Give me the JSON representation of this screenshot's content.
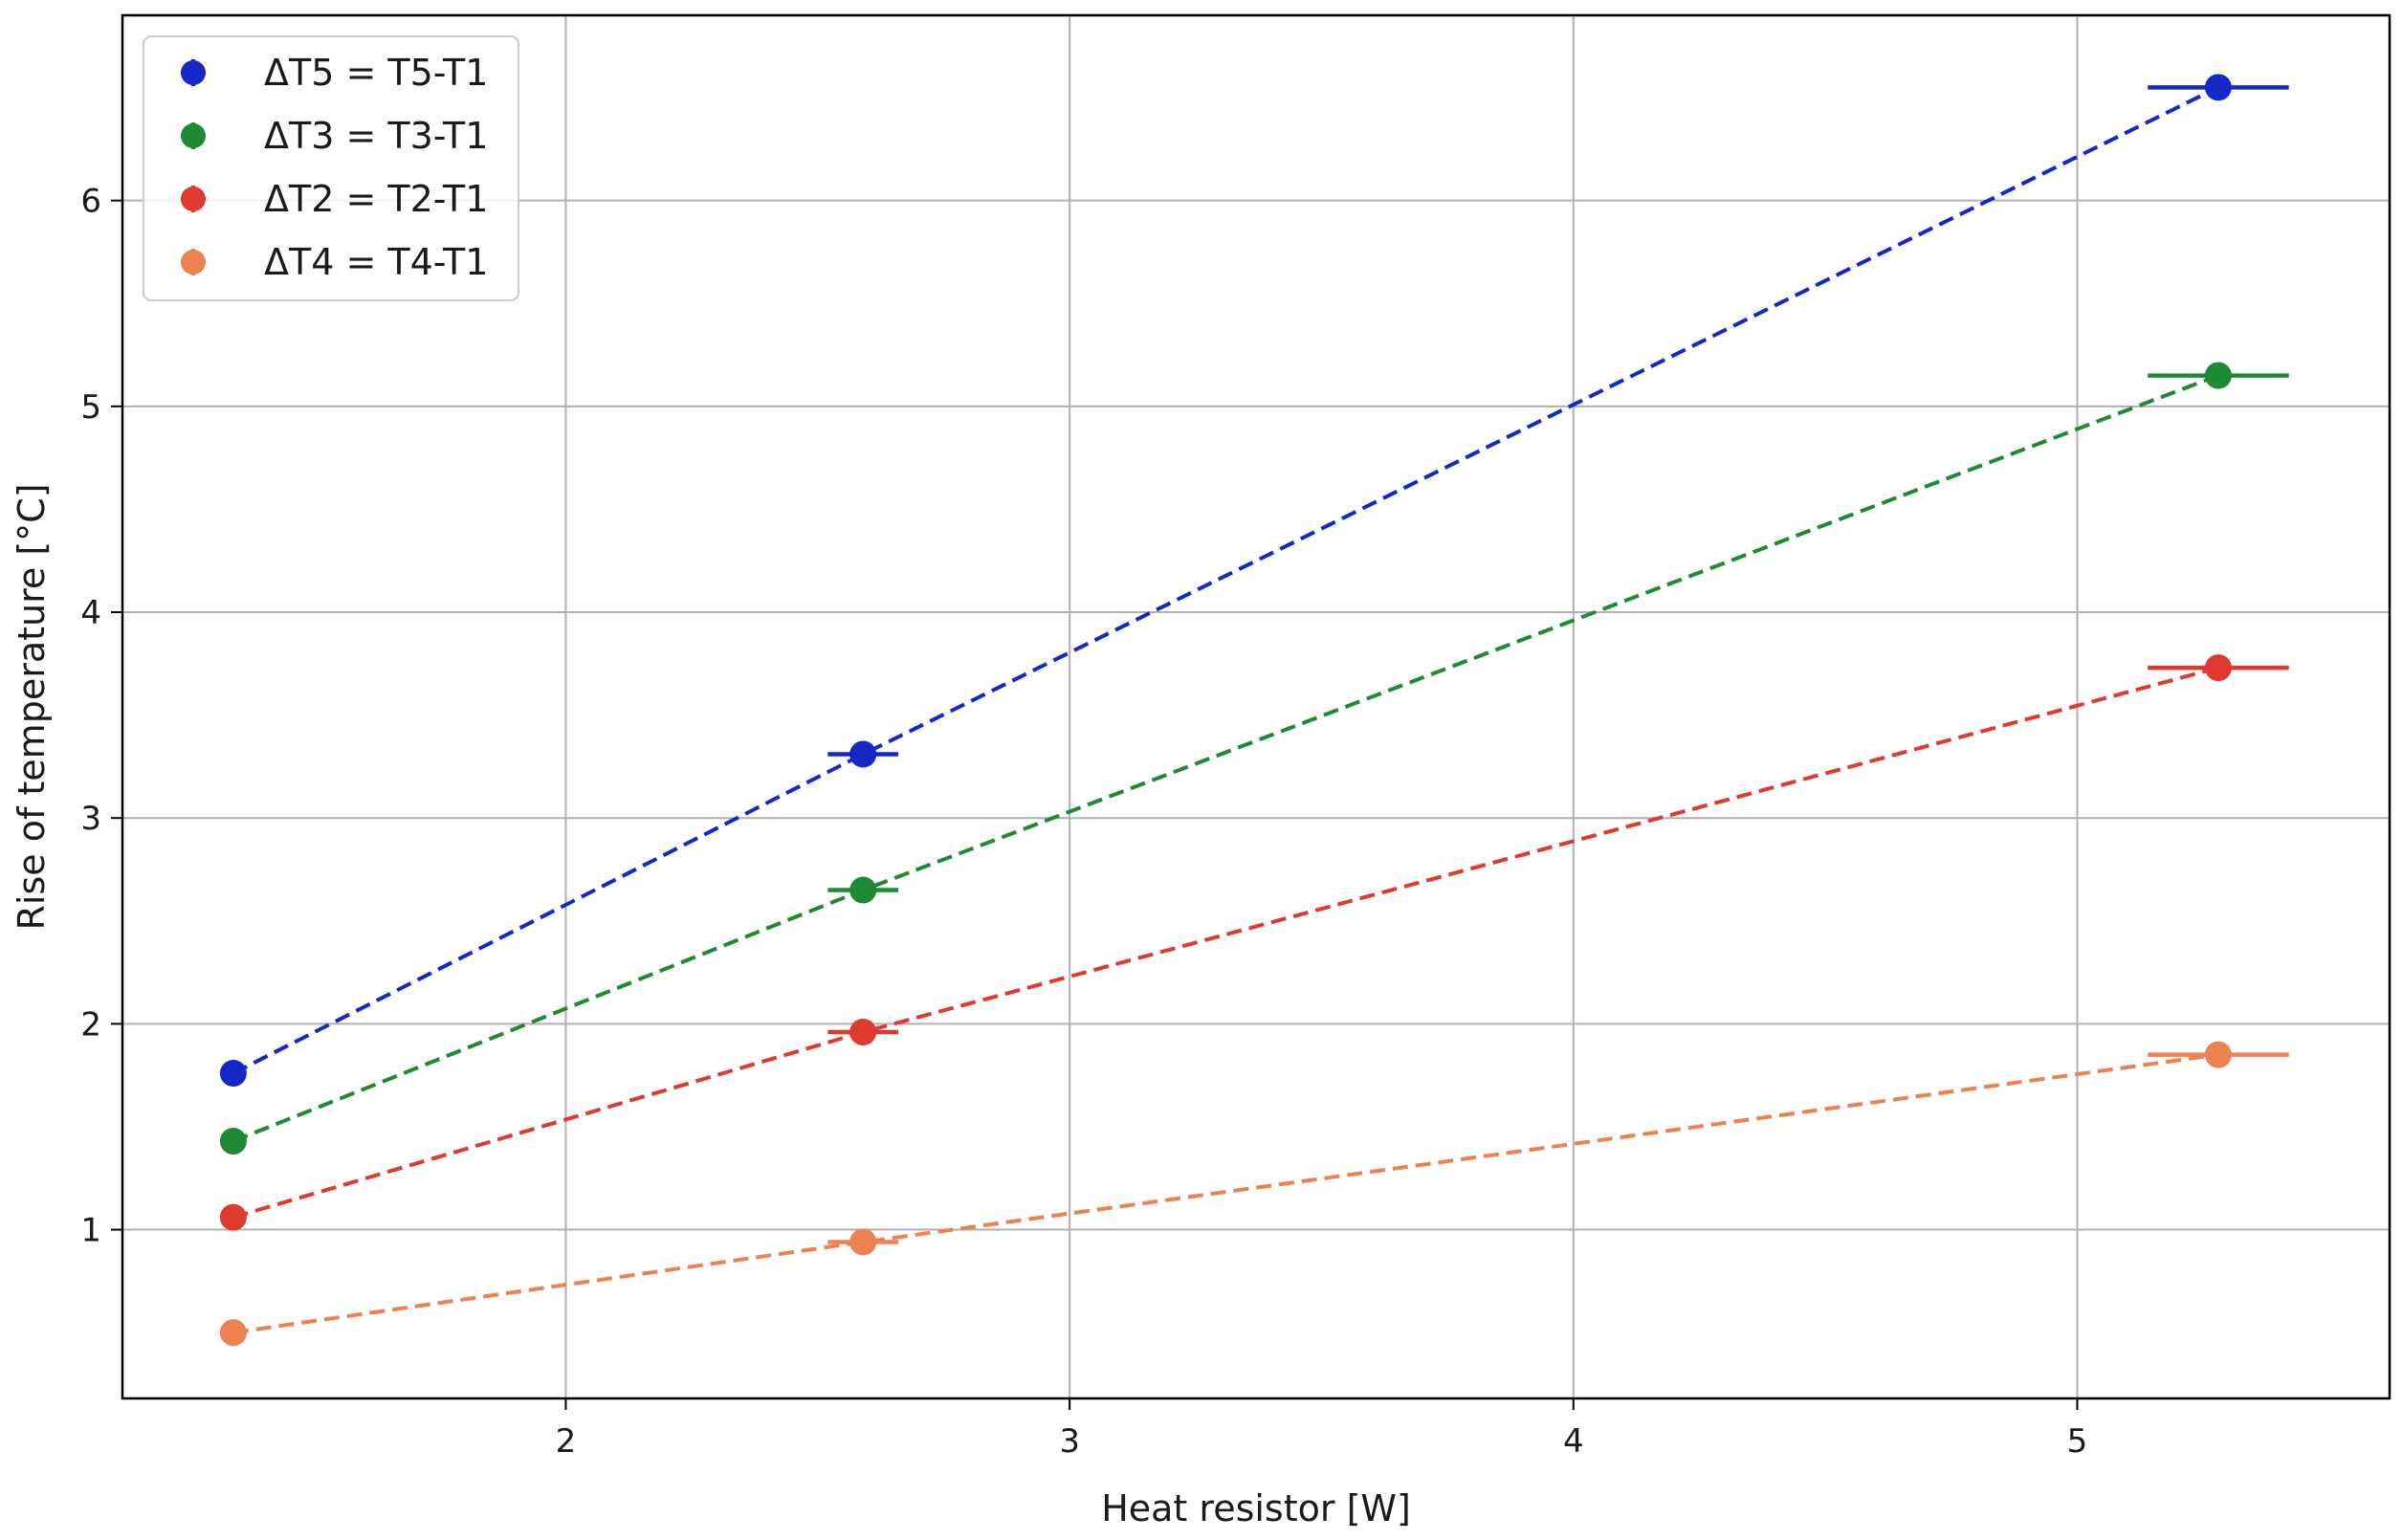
{
  "chart_data": {
    "type": "scatter",
    "title": "",
    "xlabel": "Heat resistor [W]",
    "ylabel": "Rise of temperature [°C]",
    "xlim": [
      1.12,
      5.62
    ],
    "ylim": [
      0.18,
      6.9
    ],
    "xticks": [
      2,
      3,
      4,
      5
    ],
    "yticks": [
      1,
      2,
      3,
      4,
      5,
      6
    ],
    "grid": true,
    "legend_position": "top-left",
    "series": [
      {
        "name": "ΔT5 = T5-T1",
        "color": "#1428c8",
        "x": [
          1.34,
          2.59,
          5.28
        ],
        "y": [
          1.76,
          3.31,
          6.55
        ],
        "xerr": [
          0.0,
          0.07,
          0.14
        ],
        "fit_line": "dashed"
      },
      {
        "name": "ΔT3 = T3-T1",
        "color": "#1f8a34",
        "x": [
          1.34,
          2.59,
          5.28
        ],
        "y": [
          1.43,
          2.65,
          5.15
        ],
        "xerr": [
          0.0,
          0.07,
          0.14
        ],
        "fit_line": "dashed"
      },
      {
        "name": "ΔT2 = T2-T1",
        "color": "#e03a30",
        "x": [
          1.34,
          2.59,
          5.28
        ],
        "y": [
          1.06,
          1.96,
          3.73
        ],
        "xerr": [
          0.0,
          0.07,
          0.14
        ],
        "fit_line": "dashed"
      },
      {
        "name": "ΔT4 = T4-T1",
        "color": "#ee8150",
        "x": [
          1.34,
          2.59,
          5.28
        ],
        "y": [
          0.5,
          0.94,
          1.85
        ],
        "xerr": [
          0.0,
          0.07,
          0.14
        ],
        "fit_line": "dashed"
      }
    ]
  }
}
